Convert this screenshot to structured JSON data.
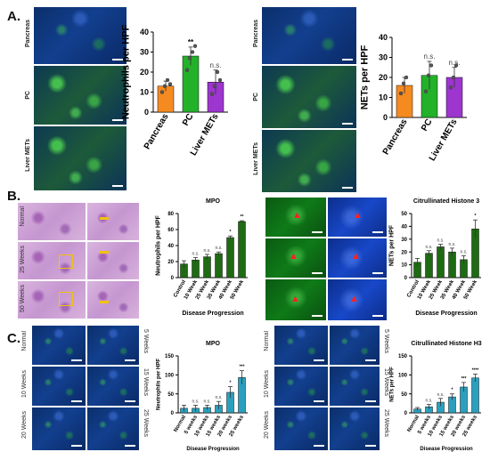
{
  "panels": {
    "A": "A.",
    "B": "B.",
    "C": "C."
  },
  "image_labels": {
    "a_left": [
      "Pancreas",
      "PC",
      "Liver METs"
    ],
    "a_right": [
      "Pancreas",
      "PC",
      "Liver METs"
    ],
    "b_he_rows": [
      "Normal",
      "25 Weeks",
      "50 Weeks"
    ],
    "c_left_rows_left": [
      "Normal",
      "10 Weeks",
      "20 Weeks"
    ],
    "c_left_rows_right": [
      "5 Weeks",
      "15 Weeks",
      "25 Weeks"
    ],
    "c_right_rows_left": [
      "Normal",
      "10 Weeks",
      "20 Weeks"
    ],
    "c_right_rows_right": [
      "5 Weeks",
      "15 Weeks",
      "25 Weeks"
    ]
  },
  "chart_data": [
    {
      "id": "A-neutrophils",
      "type": "bar",
      "categories": [
        "Pancreas",
        "PC",
        "Liver METs"
      ],
      "values": [
        13,
        28,
        15
      ],
      "errors": [
        2.5,
        4.5,
        6
      ],
      "points": [
        [
          10,
          13,
          16,
          14
        ],
        [
          21,
          27,
          30,
          33
        ],
        [
          9,
          13,
          20,
          16
        ]
      ],
      "sig": [
        "",
        "**",
        "n.s."
      ],
      "colors": [
        "#f58a21",
        "#23b12a",
        "#9d35cf"
      ],
      "ylabel": "Neutrophils per HPF",
      "ylim": [
        0,
        40
      ],
      "yticks": [
        0,
        10,
        20,
        30,
        40
      ]
    },
    {
      "id": "A-nets",
      "type": "bar",
      "categories": [
        "Pancreas",
        "PC",
        "Liver METs"
      ],
      "values": [
        16,
        21,
        20
      ],
      "errors": [
        4,
        7,
        5
      ],
      "points": [
        [
          12,
          17,
          20
        ],
        [
          13,
          21,
          26
        ],
        [
          15,
          20,
          26
        ]
      ],
      "sig": [
        "",
        "n.s.",
        "n.s."
      ],
      "colors": [
        "#f58a21",
        "#23b12a",
        "#9d35cf"
      ],
      "ylabel": "NETs per HPF",
      "ylim": [
        0,
        40
      ],
      "yticks": [
        0,
        10,
        20,
        30,
        40
      ]
    },
    {
      "id": "B-mpo",
      "type": "bar",
      "title": "MPO",
      "categories": [
        "Control",
        "10 Week",
        "25 Week",
        "35 Week",
        "40 Week",
        "50 Week"
      ],
      "values": [
        17,
        22,
        26,
        30,
        50,
        70
      ],
      "errors": [
        4,
        3,
        3,
        2,
        2,
        1
      ],
      "sig": [
        "",
        "n.s.",
        "n.s.",
        "n.s.",
        "*",
        "**"
      ],
      "colors": [
        "#1f6b13"
      ],
      "ylabel": "Neutrophils per HPF",
      "xlabel": "Disease Progression",
      "ylim": [
        0,
        80
      ],
      "yticks": [
        0,
        20,
        40,
        60,
        80
      ]
    },
    {
      "id": "B-cith3",
      "type": "bar",
      "title": "Citrullinated Histone 3",
      "categories": [
        "Control",
        "10 Week",
        "25 Week",
        "35 Week",
        "40 Week",
        "50 Week"
      ],
      "values": [
        12,
        19,
        24,
        20,
        14,
        38
      ],
      "errors": [
        3,
        2,
        2,
        3,
        3,
        7
      ],
      "sig": [
        "",
        "n.s.",
        "n.s.",
        "n.s.",
        "n.s.",
        "*"
      ],
      "colors": [
        "#1f6b13"
      ],
      "ylabel": "NETs per HPF",
      "xlabel": "Disease Progression",
      "ylim": [
        0,
        50
      ],
      "yticks": [
        0,
        10,
        20,
        30,
        40,
        50
      ]
    },
    {
      "id": "C-mpo",
      "type": "bar",
      "title": "MPO",
      "categories": [
        "Normal",
        "5 weeks",
        "10 weeks",
        "15 weeks",
        "20 weeks",
        "25 weeks"
      ],
      "values": [
        12,
        12,
        14,
        20,
        54,
        93
      ],
      "errors": [
        8,
        8,
        6,
        10,
        15,
        18
      ],
      "sig": [
        "",
        "n.s.",
        "n.s.",
        "n.s.",
        "*",
        "***"
      ],
      "colors": [
        "#2aa0be"
      ],
      "ylabel": "Neutrophils per HPF",
      "xlabel": "Disease Progression",
      "ylim": [
        0,
        150
      ],
      "yticks": [
        0,
        50,
        100,
        150
      ]
    },
    {
      "id": "C-cith3",
      "type": "bar",
      "title": "Citrullinated Histone H3",
      "categories": [
        "Normal",
        "5 weeks",
        "10 weeks",
        "15 weeks",
        "20 weeks",
        "25 weeks"
      ],
      "values": [
        10,
        16,
        28,
        42,
        68,
        92
      ],
      "errors": [
        4,
        6,
        10,
        8,
        12,
        10
      ],
      "sig": [
        "",
        "n.s.",
        "n.s.",
        "*",
        "***",
        "****"
      ],
      "colors": [
        "#2aa0be"
      ],
      "ylabel": "NETs per HPF",
      "xlabel": "Disease Progression",
      "ylim": [
        0,
        150
      ],
      "yticks": [
        0,
        50,
        100,
        150
      ]
    }
  ]
}
